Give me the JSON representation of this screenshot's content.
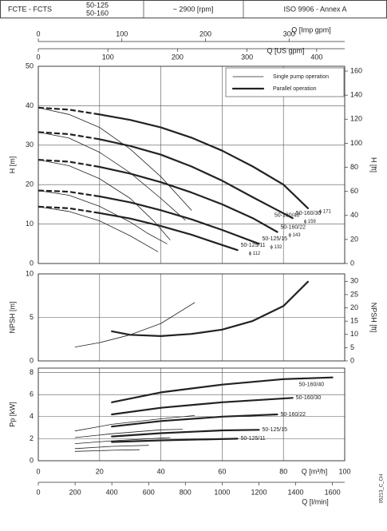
{
  "header": {
    "pump": "FCTE - FCTS",
    "models": [
      "50-125",
      "50-160"
    ],
    "speed": "~ 2900 [rpm]",
    "standard": "ISO 9906 - Annex A"
  },
  "code": "05213_C_CH",
  "chart_data": [
    {
      "type": "line",
      "ylabel": "H [m]",
      "y2label": "H [ft]",
      "xlim": [
        0,
        100
      ],
      "xticks": [
        0,
        20,
        40,
        60,
        80,
        100
      ],
      "ylim": [
        0,
        50
      ],
      "yticks": [
        0,
        10,
        20,
        30,
        40,
        50
      ],
      "y2lim": [
        0,
        164
      ],
      "y2ticks": [
        0,
        20,
        40,
        60,
        80,
        100,
        120,
        140,
        160
      ],
      "top_axes": [
        {
          "xlabel": "Q [Imp gpm]",
          "xlim": [
            0,
            366.6
          ],
          "xticks": [
            0,
            100,
            200,
            300
          ]
        },
        {
          "xlabel": "Q [US gpm]",
          "xlim": [
            0,
            440.3
          ],
          "xticks": [
            0,
            100,
            200,
            300,
            400
          ]
        }
      ],
      "legend": [
        {
          "name": "Single pump operation",
          "style": "single"
        },
        {
          "name": "Parallel operation",
          "style": "parallel"
        }
      ],
      "series": [
        {
          "style": "single",
          "x": [
            0,
            10,
            20,
            30,
            40,
            50
          ],
          "values": [
            39.5,
            37.8,
            34.5,
            29,
            22,
            13.5
          ]
        },
        {
          "style": "single",
          "x": [
            0,
            10,
            20,
            30,
            40,
            48
          ],
          "values": [
            33.3,
            31.8,
            28.2,
            23,
            16.5,
            11
          ]
        },
        {
          "style": "single",
          "x": [
            0,
            10,
            20,
            30,
            38,
            43
          ],
          "values": [
            26.3,
            24.8,
            21.5,
            16.5,
            10.5,
            6
          ]
        },
        {
          "style": "single",
          "x": [
            0,
            10,
            20,
            30,
            36,
            42
          ],
          "values": [
            18.5,
            17.3,
            14.5,
            10.5,
            7.5,
            5
          ]
        },
        {
          "style": "single",
          "x": [
            0,
            10,
            20,
            30,
            39
          ],
          "values": [
            14.4,
            13.2,
            10.8,
            7,
            3
          ]
        },
        {
          "style": "parallel",
          "dashed": true,
          "x": [
            0,
            10,
            20
          ],
          "values": [
            39.5,
            39,
            37.8
          ]
        },
        {
          "style": "parallel",
          "dashed": true,
          "x": [
            0,
            10,
            20
          ],
          "values": [
            33.3,
            32.8,
            31.5
          ]
        },
        {
          "style": "parallel",
          "dashed": true,
          "x": [
            0,
            10,
            20
          ],
          "values": [
            26.3,
            25.8,
            24.5
          ]
        },
        {
          "style": "parallel",
          "dashed": true,
          "x": [
            0,
            10,
            20
          ],
          "values": [
            18.5,
            18.2,
            17
          ]
        },
        {
          "style": "parallel",
          "dashed": true,
          "x": [
            0,
            10,
            20
          ],
          "values": [
            14.4,
            14,
            12.8
          ]
        },
        {
          "style": "parallel",
          "label": "50-160/40",
          "impeller": "ϕ 171",
          "x": [
            20,
            30,
            40,
            50,
            60,
            70,
            80,
            88
          ],
          "values": [
            37.8,
            36.4,
            34.5,
            31.9,
            28.6,
            24.6,
            20,
            14
          ]
        },
        {
          "style": "parallel",
          "label": "50-160/30",
          "impeller": "ϕ 159",
          "x": [
            20,
            30,
            40,
            50,
            60,
            70,
            83
          ],
          "values": [
            31.5,
            29.8,
            27.6,
            24.6,
            21,
            16.8,
            11.5
          ]
        },
        {
          "style": "parallel",
          "label": "50-160/22",
          "impeller": "ϕ 143",
          "x": [
            20,
            30,
            40,
            50,
            60,
            70,
            78
          ],
          "values": [
            24.5,
            22.8,
            20.6,
            18,
            15,
            11.5,
            8
          ]
        },
        {
          "style": "parallel",
          "label": "50-125/15",
          "impeller": "ϕ 132",
          "x": [
            20,
            30,
            40,
            50,
            60,
            72
          ],
          "values": [
            17,
            15.5,
            13.5,
            11.2,
            8.5,
            5
          ]
        },
        {
          "style": "parallel",
          "label": "50-125/11",
          "impeller": "ϕ 112",
          "x": [
            20,
            30,
            40,
            50,
            55,
            65
          ],
          "values": [
            12.8,
            11.4,
            9.5,
            7.3,
            6,
            3.4
          ]
        }
      ]
    },
    {
      "type": "line",
      "ylabel": "NPSH [m]",
      "y2label": "NPSH [ft]",
      "xlim": [
        0,
        100
      ],
      "xticks": [
        0,
        20,
        40,
        60,
        80,
        100
      ],
      "ylim": [
        0,
        10
      ],
      "yticks": [
        0,
        5,
        10
      ],
      "y2lim": [
        0,
        32.8
      ],
      "y2ticks": [
        0,
        5,
        10,
        15,
        20,
        25,
        30
      ],
      "series": [
        {
          "style": "single",
          "x": [
            12,
            20,
            30,
            40,
            51
          ],
          "values": [
            1.6,
            2.1,
            3.0,
            4.3,
            6.7
          ]
        },
        {
          "style": "parallel",
          "x": [
            24,
            30,
            40,
            50,
            60,
            70,
            80,
            88
          ],
          "values": [
            3.4,
            3.0,
            2.85,
            3.1,
            3.6,
            4.6,
            6.3,
            9.1
          ]
        }
      ]
    },
    {
      "type": "line",
      "ylabel": "Pp [kW]",
      "xlabel": "Q [m³/h]",
      "xlim": [
        0,
        100
      ],
      "xticks": [
        0,
        20,
        40,
        60,
        80,
        100
      ],
      "ylim": [
        0,
        8.4
      ],
      "yticks": [
        0,
        2,
        4,
        6,
        8
      ],
      "bottom_axes": [
        {
          "xlabel": "Q [l/min]",
          "xlim": [
            0,
            1666.7
          ],
          "xticks": [
            0,
            200,
            400,
            600,
            800,
            1000,
            1200,
            1400,
            1600
          ]
        }
      ],
      "series": [
        {
          "style": "single",
          "x": [
            12,
            24,
            40,
            51
          ],
          "values": [
            2.7,
            3.3,
            3.8,
            4.1
          ]
        },
        {
          "style": "single",
          "x": [
            12,
            24,
            40,
            47
          ],
          "values": [
            2.1,
            2.45,
            2.8,
            2.85
          ]
        },
        {
          "style": "single",
          "x": [
            12,
            24,
            40,
            43
          ],
          "values": [
            1.55,
            1.8,
            2.05,
            2.1
          ]
        },
        {
          "style": "single",
          "x": [
            12,
            24,
            36
          ],
          "values": [
            1.1,
            1.3,
            1.4
          ]
        },
        {
          "style": "single",
          "x": [
            12,
            24,
            33
          ],
          "values": [
            0.85,
            0.95,
            1.0
          ]
        },
        {
          "style": "parallel",
          "label": "50-160/40",
          "x": [
            24,
            40,
            60,
            80,
            96
          ],
          "values": [
            5.3,
            6.2,
            6.9,
            7.4,
            7.55
          ]
        },
        {
          "style": "parallel",
          "label": "50-160/30",
          "x": [
            24,
            40,
            60,
            83
          ],
          "values": [
            4.2,
            4.8,
            5.3,
            5.7
          ]
        },
        {
          "style": "parallel",
          "label": "50-160/22",
          "x": [
            24,
            40,
            60,
            78
          ],
          "values": [
            3.1,
            3.6,
            4.0,
            4.2
          ]
        },
        {
          "style": "parallel",
          "label": "50-125/15",
          "x": [
            24,
            40,
            60,
            72
          ],
          "values": [
            2.2,
            2.5,
            2.75,
            2.8
          ]
        },
        {
          "style": "parallel",
          "label": "50-125/11",
          "x": [
            24,
            40,
            65
          ],
          "values": [
            1.7,
            1.85,
            2.0
          ]
        }
      ]
    }
  ]
}
